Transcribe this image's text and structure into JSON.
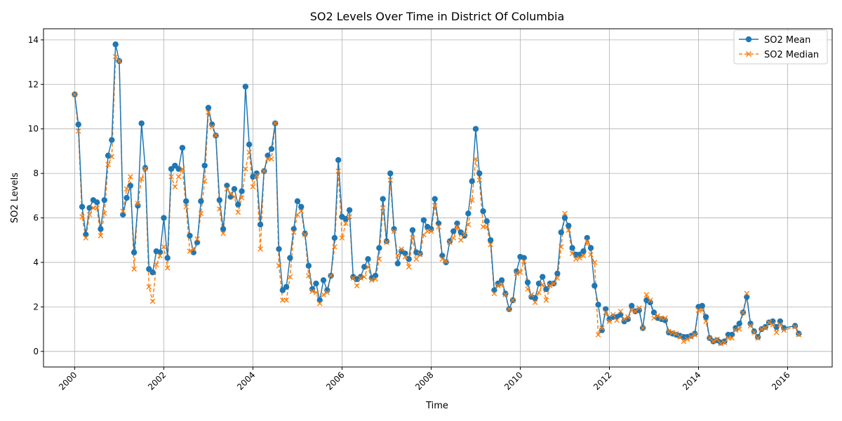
{
  "chart_data": {
    "type": "line",
    "title": "SO2 Levels Over Time in District Of Columbia",
    "xlabel": "Time",
    "ylabel": "SO2 Levels",
    "xlim": [
      1999.3,
      2017.0
    ],
    "ylim": [
      -0.7,
      14.5
    ],
    "grid": true,
    "legend_position": "top-right",
    "x_ticks": [
      2000,
      2002,
      2004,
      2006,
      2008,
      2010,
      2012,
      2014,
      2016
    ],
    "x_tick_labels": [
      "2000",
      "2002",
      "2004",
      "2006",
      "2008",
      "2010",
      "2012",
      "2014",
      "2016"
    ],
    "y_ticks": [
      0,
      2,
      4,
      6,
      8,
      10,
      12,
      14
    ],
    "y_tick_labels": [
      "0",
      "2",
      "4",
      "6",
      "8",
      "10",
      "12",
      "14"
    ],
    "x": [
      2000.0,
      2000.083,
      2000.167,
      2000.25,
      2000.333,
      2000.417,
      2000.5,
      2000.583,
      2000.667,
      2000.75,
      2000.833,
      2000.917,
      2001.0,
      2001.083,
      2001.167,
      2001.25,
      2001.333,
      2001.417,
      2001.5,
      2001.583,
      2001.667,
      2001.75,
      2001.833,
      2001.917,
      2002.0,
      2002.083,
      2002.167,
      2002.25,
      2002.333,
      2002.417,
      2002.5,
      2002.583,
      2002.667,
      2002.75,
      2002.833,
      2002.917,
      2003.0,
      2003.083,
      2003.167,
      2003.25,
      2003.333,
      2003.417,
      2003.5,
      2003.583,
      2003.667,
      2003.75,
      2003.833,
      2003.917,
      2004.0,
      2004.083,
      2004.167,
      2004.25,
      2004.333,
      2004.417,
      2004.5,
      2004.583,
      2004.667,
      2004.75,
      2004.833,
      2004.917,
      2005.0,
      2005.083,
      2005.167,
      2005.25,
      2005.333,
      2005.417,
      2005.5,
      2005.583,
      2005.667,
      2005.75,
      2005.833,
      2005.917,
      2006.0,
      2006.083,
      2006.167,
      2006.25,
      2006.333,
      2006.417,
      2006.5,
      2006.583,
      2006.667,
      2006.75,
      2006.833,
      2006.917,
      2007.0,
      2007.083,
      2007.167,
      2007.25,
      2007.333,
      2007.417,
      2007.5,
      2007.583,
      2007.667,
      2007.75,
      2007.833,
      2007.917,
      2008.0,
      2008.083,
      2008.167,
      2008.25,
      2008.333,
      2008.417,
      2008.5,
      2008.583,
      2008.667,
      2008.75,
      2008.833,
      2008.917,
      2009.0,
      2009.083,
      2009.167,
      2009.25,
      2009.333,
      2009.417,
      2009.5,
      2009.583,
      2009.667,
      2009.75,
      2009.833,
      2009.917,
      2010.0,
      2010.083,
      2010.167,
      2010.25,
      2010.333,
      2010.417,
      2010.5,
      2010.583,
      2010.667,
      2010.75,
      2010.833,
      2010.917,
      2011.0,
      2011.083,
      2011.167,
      2011.25,
      2011.333,
      2011.417,
      2011.5,
      2011.583,
      2011.667,
      2011.75,
      2011.833,
      2011.917,
      2012.0,
      2012.083,
      2012.167,
      2012.25,
      2012.333,
      2012.417,
      2012.5,
      2012.583,
      2012.667,
      2012.75,
      2012.833,
      2012.917,
      2013.0,
      2013.083,
      2013.167,
      2013.25,
      2013.333,
      2013.417,
      2013.5,
      2013.583,
      2013.667,
      2013.75,
      2013.833,
      2013.917,
      2014.0,
      2014.083,
      2014.167,
      2014.25,
      2014.333,
      2014.417,
      2014.5,
      2014.583,
      2014.667,
      2014.75,
      2014.833,
      2014.917,
      2015.0,
      2015.083,
      2015.167,
      2015.25,
      2015.333,
      2015.417,
      2015.5,
      2015.583,
      2015.667,
      2015.75,
      2015.833,
      2015.917,
      2016.167,
      2016.25
    ],
    "series": [
      {
        "name": "SO2 Mean",
        "color": "#1f77b4",
        "line_style": "solid",
        "marker": "circle",
        "values": [
          11.55,
          10.2,
          6.5,
          5.25,
          6.45,
          6.8,
          6.7,
          5.5,
          6.8,
          8.8,
          9.5,
          13.8,
          13.05,
          6.15,
          6.9,
          7.45,
          4.45,
          6.55,
          10.25,
          8.25,
          3.7,
          3.55,
          4.5,
          4.45,
          6.0,
          4.2,
          8.2,
          8.35,
          8.2,
          9.15,
          6.75,
          5.2,
          4.45,
          4.9,
          6.75,
          8.35,
          10.95,
          10.2,
          9.7,
          6.8,
          5.5,
          7.45,
          6.95,
          7.3,
          6.6,
          7.2,
          11.9,
          9.3,
          7.85,
          8.0,
          5.7,
          8.1,
          8.8,
          9.1,
          10.25,
          4.6,
          2.75,
          2.9,
          4.2,
          5.5,
          6.75,
          6.5,
          5.3,
          3.85,
          2.8,
          3.05,
          2.3,
          3.2,
          2.75,
          3.4,
          5.1,
          8.6,
          6.05,
          5.95,
          6.35,
          3.35,
          3.25,
          3.35,
          3.8,
          4.15,
          3.3,
          3.4,
          4.65,
          6.85,
          4.95,
          8.0,
          5.5,
          3.95,
          4.5,
          4.4,
          4.15,
          5.45,
          4.45,
          4.4,
          5.9,
          5.6,
          5.5,
          6.85,
          5.75,
          4.3,
          4.0,
          4.95,
          5.4,
          5.75,
          5.35,
          5.2,
          6.2,
          7.65,
          10.0,
          8.0,
          6.3,
          5.85,
          5.0,
          2.75,
          3.05,
          3.2,
          2.6,
          1.9,
          2.3,
          3.6,
          4.25,
          4.2,
          3.1,
          2.45,
          2.4,
          3.05,
          3.35,
          2.8,
          3.05,
          3.05,
          3.5,
          5.35,
          6.0,
          5.65,
          4.65,
          4.35,
          4.35,
          4.5,
          5.1,
          4.65,
          2.95,
          2.1,
          0.95,
          1.9,
          1.45,
          1.55,
          1.55,
          1.65,
          1.35,
          1.45,
          2.05,
          1.8,
          1.85,
          1.05,
          2.3,
          2.2,
          1.75,
          1.5,
          1.45,
          1.4,
          0.85,
          0.8,
          0.75,
          0.7,
          0.65,
          0.65,
          0.7,
          0.8,
          2.0,
          2.05,
          1.55,
          0.6,
          0.45,
          0.5,
          0.4,
          0.45,
          0.75,
          0.75,
          1.05,
          1.25,
          1.75,
          2.45,
          1.25,
          0.9,
          0.65,
          1.0,
          1.1,
          1.3,
          1.35,
          1.1,
          1.35,
          1.05,
          1.15,
          0.8
        ]
      },
      {
        "name": "SO2 Median",
        "color": "#ff7f0e",
        "line_style": "dashed",
        "marker": "x",
        "values": [
          11.55,
          9.9,
          6.05,
          5.1,
          6.15,
          6.45,
          6.45,
          5.2,
          6.2,
          8.4,
          8.75,
          13.25,
          13.05,
          6.3,
          7.3,
          7.85,
          3.7,
          6.65,
          7.75,
          8.2,
          2.9,
          2.25,
          3.9,
          4.3,
          4.7,
          3.75,
          7.85,
          7.4,
          7.85,
          8.2,
          6.5,
          4.5,
          4.6,
          5.05,
          6.2,
          7.65,
          10.75,
          10.1,
          9.7,
          6.4,
          5.3,
          7.3,
          7.1,
          6.95,
          6.25,
          6.9,
          8.2,
          8.95,
          7.4,
          7.9,
          4.6,
          8.1,
          8.65,
          8.65,
          10.25,
          3.85,
          2.3,
          2.3,
          3.35,
          5.35,
          6.15,
          6.3,
          5.25,
          3.4,
          2.7,
          2.65,
          2.15,
          2.55,
          2.65,
          3.4,
          4.7,
          8.1,
          5.1,
          5.75,
          6.05,
          3.3,
          2.95,
          3.3,
          3.35,
          3.8,
          3.2,
          3.25,
          4.15,
          6.45,
          4.9,
          7.7,
          5.4,
          4.3,
          4.6,
          4.25,
          3.8,
          5.1,
          4.15,
          4.35,
          5.25,
          5.4,
          5.4,
          6.55,
          5.6,
          4.15,
          4.05,
          4.9,
          5.1,
          5.6,
          5.0,
          5.25,
          5.7,
          6.8,
          8.65,
          7.7,
          5.6,
          5.6,
          4.8,
          2.6,
          2.95,
          3.0,
          2.55,
          1.9,
          2.3,
          3.5,
          3.55,
          4.05,
          2.8,
          2.55,
          2.2,
          2.65,
          3.0,
          2.3,
          2.95,
          3.05,
          3.3,
          4.7,
          6.2,
          5.45,
          4.4,
          4.15,
          4.2,
          4.3,
          4.95,
          4.35,
          4.0,
          0.75,
          1.05,
          1.75,
          1.35,
          1.65,
          1.4,
          1.8,
          1.45,
          1.55,
          1.85,
          1.8,
          1.95,
          1.05,
          2.55,
          2.3,
          1.5,
          1.6,
          1.5,
          1.5,
          0.9,
          0.85,
          0.8,
          0.65,
          0.45,
          0.55,
          0.65,
          0.75,
          1.85,
          1.85,
          1.35,
          0.6,
          0.45,
          0.55,
          0.35,
          0.4,
          0.6,
          0.6,
          0.95,
          1.0,
          1.75,
          2.6,
          1.15,
          0.85,
          0.6,
          1.0,
          1.05,
          1.3,
          1.2,
          0.85,
          1.2,
          0.95,
          1.1,
          0.75
        ]
      }
    ]
  }
}
